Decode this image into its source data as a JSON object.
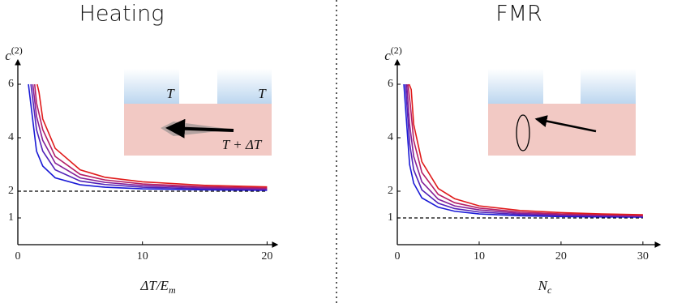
{
  "chart_data": [
    {
      "type": "line",
      "title": "Heating",
      "ylabel": "c",
      "ylabel_sup": "(2)",
      "xlabel": "ΔT/E",
      "xlabel_sub": "m",
      "xlim": [
        0,
        20.3
      ],
      "ylim": [
        0,
        6.6
      ],
      "xticks": [
        0,
        10,
        20
      ],
      "yticks": [
        1,
        2,
        4,
        6
      ],
      "hline": 2,
      "inset_labels": [
        "T",
        "T",
        "T + ΔT"
      ],
      "series": [
        {
          "color": "#1a1ad6",
          "x": [
            0.85,
            1.5,
            2,
            3,
            5,
            7,
            10,
            15,
            20
          ],
          "values": [
            6,
            3.5,
            2.94,
            2.5,
            2.24,
            2.15,
            2.09,
            2.05,
            2.03
          ]
        },
        {
          "color": "#5222b8",
          "x": [
            1.05,
            1.5,
            2,
            3,
            5,
            7,
            10,
            15,
            20
          ],
          "values": [
            6,
            4.3,
            3.5,
            2.8,
            2.38,
            2.25,
            2.15,
            2.09,
            2.06
          ]
        },
        {
          "color": "#852098",
          "x": [
            1.2,
            1.5,
            2,
            3,
            5,
            7,
            10,
            15,
            20
          ],
          "values": [
            6,
            4.8,
            3.9,
            3.05,
            2.5,
            2.33,
            2.21,
            2.13,
            2.09
          ]
        },
        {
          "color": "#b41e66",
          "x": [
            1.35,
            1.5,
            2,
            3,
            5,
            7,
            10,
            15,
            20
          ],
          "values": [
            6,
            5.3,
            4.3,
            3.3,
            2.63,
            2.42,
            2.27,
            2.17,
            2.12
          ]
        },
        {
          "color": "#e01a1a",
          "x": [
            1.55,
            1.7,
            2,
            3,
            5,
            7,
            10,
            15,
            20
          ],
          "values": [
            6,
            5.7,
            4.7,
            3.6,
            2.8,
            2.52,
            2.35,
            2.22,
            2.16
          ]
        }
      ]
    },
    {
      "type": "line",
      "title": "FMR",
      "ylabel": "c",
      "ylabel_sup": "(2)",
      "xlabel": "N",
      "xlabel_sub": "c",
      "xlim": [
        0,
        31.3
      ],
      "ylim": [
        0,
        6.6
      ],
      "xticks": [
        0,
        10,
        20,
        30
      ],
      "yticks": [
        1,
        2,
        4,
        6
      ],
      "hline": 1,
      "inset_labels": [],
      "series": [
        {
          "color": "#1a1ad6",
          "x": [
            0.8,
            1.5,
            2,
            3,
            5,
            7,
            10,
            15,
            20,
            25,
            30
          ],
          "values": [
            6,
            3.0,
            2.3,
            1.75,
            1.4,
            1.25,
            1.15,
            1.08,
            1.05,
            1.04,
            1.03
          ]
        },
        {
          "color": "#5222b8",
          "x": [
            1.0,
            1.5,
            2,
            3,
            5,
            7,
            10,
            15,
            20,
            25,
            30
          ],
          "values": [
            6,
            3.8,
            2.8,
            2.05,
            1.55,
            1.35,
            1.22,
            1.13,
            1.09,
            1.07,
            1.05
          ]
        },
        {
          "color": "#852098",
          "x": [
            1.15,
            1.5,
            2,
            3,
            5,
            7,
            10,
            15,
            20,
            25,
            30
          ],
          "values": [
            6,
            4.5,
            3.3,
            2.35,
            1.7,
            1.45,
            1.3,
            1.17,
            1.12,
            1.09,
            1.07
          ]
        },
        {
          "color": "#b41e66",
          "x": [
            1.3,
            1.6,
            2,
            3,
            5,
            7,
            10,
            15,
            20,
            25,
            30
          ],
          "values": [
            6,
            5.2,
            3.9,
            2.7,
            1.88,
            1.57,
            1.37,
            1.22,
            1.15,
            1.12,
            1.09
          ]
        },
        {
          "color": "#e01a1a",
          "x": [
            1.45,
            1.7,
            2,
            3,
            5,
            7,
            10,
            15,
            20,
            25,
            30
          ],
          "values": [
            6,
            5.8,
            4.5,
            3.1,
            2.1,
            1.72,
            1.45,
            1.28,
            1.2,
            1.15,
            1.12
          ]
        }
      ]
    }
  ]
}
